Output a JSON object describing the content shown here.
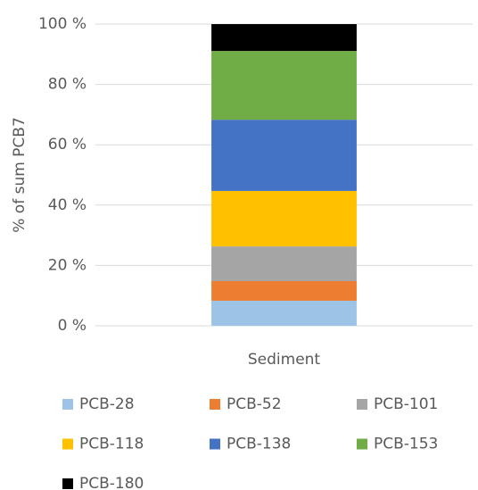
{
  "chart_data": {
    "type": "stacked_bar",
    "y_label": "% of sum PCB7",
    "categories": [
      "Sediment"
    ],
    "series": [
      {
        "name": "PCB-28",
        "color": "#9DC3E6",
        "values": [
          8.3
        ]
      },
      {
        "name": "PCB-52",
        "color": "#ED7D31",
        "values": [
          6.5
        ]
      },
      {
        "name": "PCB-101",
        "color": "#A5A5A5",
        "values": [
          11.5
        ]
      },
      {
        "name": "PCB-118",
        "color": "#FFC000",
        "values": [
          18.4
        ]
      },
      {
        "name": "PCB-138",
        "color": "#4472C4",
        "values": [
          23.6
        ]
      },
      {
        "name": "PCB-153",
        "color": "#70AD47",
        "values": [
          22.8
        ]
      },
      {
        "name": "PCB-180",
        "color": "#000000",
        "values": [
          8.9
        ]
      }
    ],
    "ylim": [
      0,
      100
    ],
    "yticks": [
      {
        "value": 0,
        "label": "0 %"
      },
      {
        "value": 20,
        "label": "20 %"
      },
      {
        "value": 40,
        "label": "40 %"
      },
      {
        "value": 60,
        "label": "60 %"
      },
      {
        "value": 80,
        "label": "80 %"
      },
      {
        "value": 100,
        "label": "100 %"
      }
    ],
    "grid": true,
    "legend": "bottom"
  }
}
